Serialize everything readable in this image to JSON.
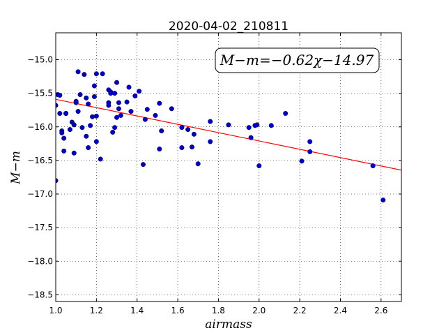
{
  "chart_data": {
    "type": "scatter",
    "title": "2020-04-02_210811",
    "xlabel": "airmass",
    "ylabel": "M−m",
    "xlim": [
      1.0,
      2.7
    ],
    "ylim": [
      -18.6,
      -14.6
    ],
    "y_inverted": true,
    "x_ticks": [
      1.0,
      1.2,
      1.4,
      1.6,
      1.8,
      2.0,
      2.2,
      2.4,
      2.6
    ],
    "x_tick_labels": [
      "1.0",
      "1.2",
      "1.4",
      "1.6",
      "1.8",
      "2.0",
      "2.2",
      "2.4",
      "2.6"
    ],
    "y_ticks": [
      -15.0,
      -15.5,
      -16.0,
      -16.5,
      -17.0,
      -17.5,
      -18.0,
      -18.5
    ],
    "y_tick_labels": [
      "−15.0",
      "−15.5",
      "−16.0",
      "−16.5",
      "−17.0",
      "−17.5",
      "−18.0",
      "−18.5"
    ],
    "grid": true,
    "annotation": "M−m=−0.62χ−14.97",
    "fit": {
      "slope": -0.62,
      "intercept": -14.97,
      "color": "#ff0000"
    },
    "marker_color": "#0000cc",
    "series": [
      {
        "x": [
          1.0,
          1.0,
          1.01,
          1.02,
          1.02,
          1.03,
          1.03,
          1.04,
          1.04,
          1.05,
          1.05,
          1.07,
          1.08,
          1.09,
          1.09,
          1.1,
          1.1,
          1.11,
          1.11,
          1.12,
          1.13,
          1.14,
          1.15,
          1.15,
          1.16,
          1.16,
          1.17,
          1.18,
          1.19,
          1.19,
          1.2,
          1.2,
          1.2,
          1.22,
          1.23,
          1.26,
          1.26,
          1.26,
          1.27,
          1.27,
          1.28,
          1.29,
          1.29,
          1.3,
          1.3,
          1.31,
          1.31,
          1.32,
          1.35,
          1.36,
          1.37,
          1.39,
          1.41,
          1.43,
          1.44,
          1.45,
          1.49,
          1.51,
          1.51,
          1.52,
          1.57,
          1.62,
          1.62,
          1.65,
          1.67,
          1.68,
          1.7,
          1.76,
          1.76,
          1.85,
          1.95,
          1.96,
          1.98,
          1.99,
          2.0,
          2.06,
          2.13,
          2.21,
          2.25,
          2.25,
          2.56,
          2.61
        ],
        "y": [
          -15.68,
          -16.8,
          -15.52,
          -15.8,
          -15.53,
          -16.06,
          -16.09,
          -16.36,
          -16.17,
          -15.8,
          -15.8,
          -16.04,
          -15.93,
          -15.97,
          -16.39,
          -15.62,
          -15.64,
          -15.18,
          -15.77,
          -15.52,
          -16.01,
          -15.22,
          -15.57,
          -16.14,
          -15.66,
          -16.31,
          -15.98,
          -15.85,
          -15.39,
          -15.55,
          -15.21,
          -15.84,
          -16.22,
          -16.48,
          -15.21,
          -15.45,
          -15.64,
          -15.68,
          -15.48,
          -15.5,
          -16.08,
          -15.5,
          -16.01,
          -15.86,
          -15.34,
          -15.73,
          -15.64,
          -15.83,
          -15.63,
          -15.41,
          -15.77,
          -15.54,
          -15.47,
          -16.56,
          -15.89,
          -15.74,
          -15.83,
          -15.65,
          -16.33,
          -16.06,
          -15.73,
          -16.01,
          -16.31,
          -16.04,
          -16.3,
          -16.11,
          -16.55,
          -15.92,
          -16.22,
          -15.97,
          -16.01,
          -16.16,
          -15.98,
          -15.97,
          -16.58,
          -15.98,
          -15.8,
          -16.51,
          -16.22,
          -16.37,
          -16.58,
          -17.09
        ]
      }
    ]
  }
}
